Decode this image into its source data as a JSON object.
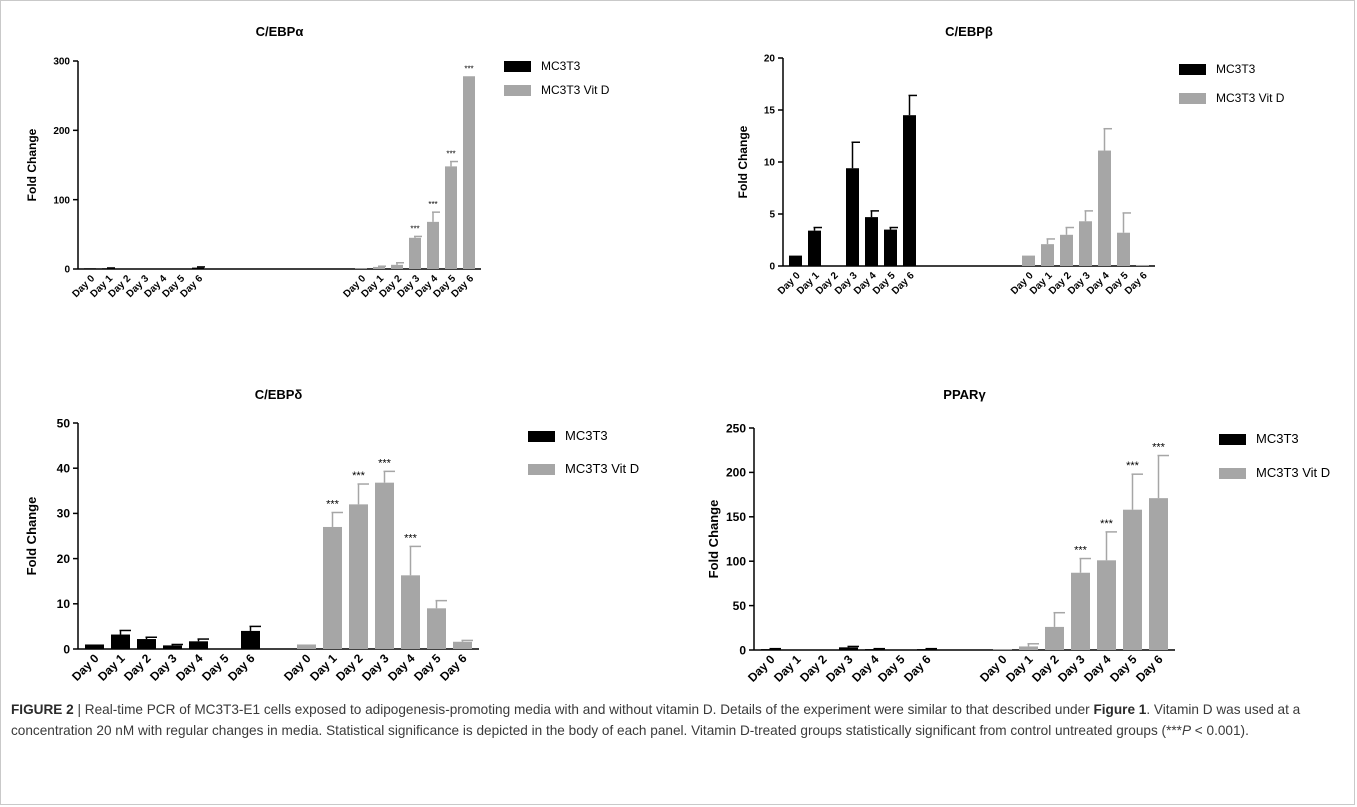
{
  "series_colors": {
    "MC3T3": "#000000",
    "MC3T3 Vit D": "#a6a6a6"
  },
  "chart_data": [
    {
      "type": "bar",
      "title": "C/EBPα",
      "ylabel": "Fold Change",
      "ylim": [
        0,
        300
      ],
      "yticks": [
        0,
        100,
        200,
        300
      ],
      "categories": [
        "Day 0",
        "Day 1",
        "Day 2",
        "Day 3",
        "Day 4",
        "Day 5",
        "Day 6"
      ],
      "series": [
        {
          "name": "MC3T3",
          "values": [
            1,
            1,
            0,
            0,
            0,
            0,
            2
          ],
          "errors": [
            0,
            0.5,
            0,
            0,
            0,
            0,
            1
          ]
        },
        {
          "name": "MC3T3 Vit D",
          "values": [
            1,
            3,
            6,
            45,
            68,
            148,
            278
          ],
          "errors": [
            0,
            1,
            3,
            2,
            14,
            7,
            0
          ]
        }
      ],
      "annotations": [
        {
          "series": 1,
          "index": 3,
          "text": "***"
        },
        {
          "series": 1,
          "index": 4,
          "text": "***"
        },
        {
          "series": 1,
          "index": 5,
          "text": "***"
        },
        {
          "series": 1,
          "index": 6,
          "text": "***"
        }
      ],
      "legend": [
        "MC3T3",
        "MC3T3 Vit D"
      ]
    },
    {
      "type": "bar",
      "title": "C/EBPβ",
      "ylabel": "Fold Change",
      "ylim": [
        0,
        20
      ],
      "yticks": [
        0,
        5,
        10,
        15,
        20
      ],
      "categories": [
        "Day 0",
        "Day 1",
        "Day 2",
        "Day 3",
        "Day 4",
        "Day 5",
        "Day 6"
      ],
      "series": [
        {
          "name": "MC3T3",
          "values": [
            1,
            3.4,
            0,
            9.4,
            4.7,
            3.5,
            14.5
          ],
          "errors": [
            0,
            0.3,
            0,
            2.5,
            0.6,
            0.2,
            1.9
          ]
        },
        {
          "name": "MC3T3 Vit D",
          "values": [
            1,
            2.1,
            3.0,
            4.3,
            11.1,
            3.2,
            0.1
          ],
          "errors": [
            0,
            0.5,
            0.7,
            1.0,
            2.1,
            1.9,
            0
          ]
        }
      ],
      "annotations": [],
      "legend": [
        "MC3T3",
        "MC3T3 Vit D"
      ]
    },
    {
      "type": "bar",
      "title": "C/EBPδ",
      "ylabel": "Fold Change",
      "ylim": [
        0,
        50
      ],
      "yticks": [
        0,
        10,
        20,
        30,
        40,
        50
      ],
      "categories": [
        "Day 0",
        "Day 1",
        "Day 2",
        "Day 3",
        "Day 4",
        "Day 5",
        "Day 6"
      ],
      "series": [
        {
          "name": "MC3T3",
          "values": [
            1,
            3.2,
            2.2,
            0.8,
            1.7,
            0,
            4.0
          ],
          "errors": [
            0,
            0.9,
            0.4,
            0.2,
            0.5,
            0,
            1.0
          ]
        },
        {
          "name": "MC3T3 Vit D",
          "values": [
            1,
            27,
            32,
            36.8,
            16.3,
            9.0,
            1.6
          ],
          "errors": [
            0,
            3.2,
            4.5,
            2.5,
            6.4,
            1.7,
            0.3
          ]
        }
      ],
      "annotations": [
        {
          "series": 1,
          "index": 1,
          "text": "***"
        },
        {
          "series": 1,
          "index": 2,
          "text": "***"
        },
        {
          "series": 1,
          "index": 3,
          "text": "***"
        },
        {
          "series": 1,
          "index": 4,
          "text": "***"
        }
      ],
      "legend": [
        "MC3T3",
        "MC3T3 Vit D"
      ]
    },
    {
      "type": "bar",
      "title": "PPARγ",
      "ylabel": "Fold Change",
      "ylim": [
        0,
        250
      ],
      "yticks": [
        0,
        50,
        100,
        150,
        200,
        250
      ],
      "categories": [
        "Day 0",
        "Day 1",
        "Day 2",
        "Day 3",
        "Day 4",
        "Day 5",
        "Day 6"
      ],
      "series": [
        {
          "name": "MC3T3",
          "values": [
            1,
            0,
            0,
            3,
            1,
            0,
            1
          ],
          "errors": [
            0.5,
            0,
            0,
            1,
            0.5,
            0,
            0.5
          ]
        },
        {
          "name": "MC3T3 Vit D",
          "values": [
            1,
            4,
            26,
            87,
            101,
            158,
            171
          ],
          "errors": [
            0,
            3,
            16,
            16,
            32,
            40,
            48
          ]
        }
      ],
      "annotations": [
        {
          "series": 1,
          "index": 3,
          "text": "***"
        },
        {
          "series": 1,
          "index": 4,
          "text": "***"
        },
        {
          "series": 1,
          "index": 5,
          "text": "***"
        },
        {
          "series": 1,
          "index": 6,
          "text": "***"
        }
      ],
      "legend": [
        "MC3T3",
        "MC3T3 Vit D"
      ]
    }
  ],
  "caption": {
    "label": "FIGURE 2",
    "part1": " | Real-time PCR of MC3T3-E1 cells exposed to adipogenesis-promoting media with and without vitamin D. Details of the experiment were similar to that described under ",
    "ref": "Figure 1",
    "part2": ". Vitamin D was used at a concentration 20 nM with regular changes in media. Statistical significance is depicted in the body of each panel. Vitamin D-treated groups statistically significant from control untreated groups (",
    "stars": "***",
    "pvar": "P",
    "part3": " < 0.001)."
  }
}
